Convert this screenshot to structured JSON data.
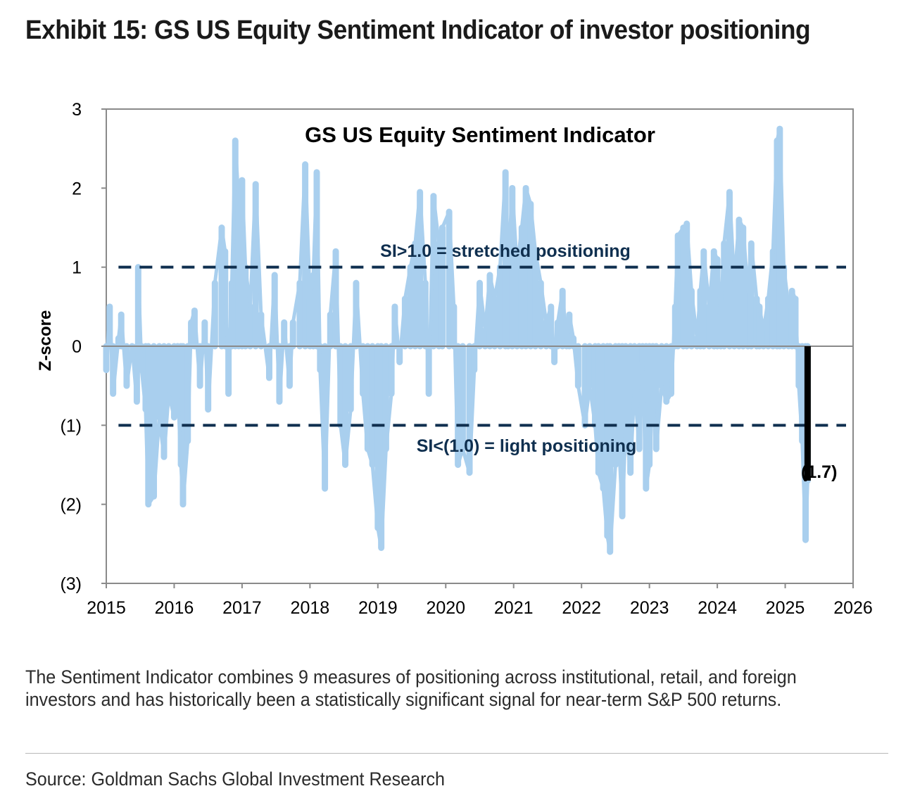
{
  "exhibit_title": "Exhibit 15: GS US Equity Sentiment Indicator of investor positioning",
  "note": "The Sentiment Indicator combines 9 measures of positioning across institutional, retail, and foreign investors and has historically been a statistically significant signal for near-term S&P 500 returns.",
  "source": "Source: Goldman Sachs Global Investment Research",
  "colors": {
    "series": "#a9cfee",
    "threshold_line": "#0f2f4f",
    "latest_bar": "#000000",
    "axis": "#8a8a8a",
    "annotation_text": "#0f2f4f"
  },
  "chart_data": {
    "type": "bar",
    "title": "GS US Equity Sentiment Indicator",
    "xlabel": "",
    "ylabel": "Z-score",
    "xlim": [
      2015,
      2026
    ],
    "ylim": [
      -3,
      3
    ],
    "x_ticks": [
      2015,
      2016,
      2017,
      2018,
      2019,
      2020,
      2021,
      2022,
      2023,
      2024,
      2025,
      2026
    ],
    "x_tick_labels": [
      "2015",
      "2016",
      "2017",
      "2018",
      "2019",
      "2020",
      "2021",
      "2022",
      "2023",
      "2024",
      "2025",
      "2026"
    ],
    "y_ticks": [
      3,
      2,
      1,
      0,
      -1,
      -2,
      -3
    ],
    "y_tick_labels": [
      "3",
      "2",
      "1",
      "0",
      "(1)",
      "(2)",
      "(3)"
    ],
    "grid": false,
    "series": [
      {
        "values": [
          [
            2015.0,
            -0.3
          ],
          [
            2015.05,
            0.5
          ],
          [
            2015.1,
            -0.6
          ],
          [
            2015.18,
            0.1
          ],
          [
            2015.22,
            0.4
          ],
          [
            2015.3,
            -0.5
          ],
          [
            2015.38,
            0.0
          ],
          [
            2015.45,
            -0.7
          ],
          [
            2015.47,
            1.0
          ],
          [
            2015.52,
            -0.3
          ],
          [
            2015.58,
            -0.8
          ],
          [
            2015.62,
            -2.0
          ],
          [
            2015.7,
            -1.9
          ],
          [
            2015.78,
            -0.9
          ],
          [
            2015.85,
            -1.4
          ],
          [
            2015.92,
            -0.6
          ],
          [
            2016.0,
            -0.9
          ],
          [
            2016.05,
            -0.5
          ],
          [
            2016.1,
            -1.5
          ],
          [
            2016.13,
            -2.0
          ],
          [
            2016.2,
            -1.2
          ],
          [
            2016.25,
            0.3
          ],
          [
            2016.3,
            0.45
          ],
          [
            2016.38,
            -0.5
          ],
          [
            2016.45,
            0.3
          ],
          [
            2016.5,
            -0.8
          ],
          [
            2016.6,
            0.8
          ],
          [
            2016.7,
            1.5
          ],
          [
            2016.75,
            1.2
          ],
          [
            2016.8,
            -0.6
          ],
          [
            2016.85,
            0.8
          ],
          [
            2016.9,
            2.6
          ],
          [
            2016.95,
            1.8
          ],
          [
            2017.0,
            2.1
          ],
          [
            2017.05,
            1.0
          ],
          [
            2017.12,
            0.5
          ],
          [
            2017.2,
            2.05
          ],
          [
            2017.28,
            0.4
          ],
          [
            2017.4,
            -0.4
          ],
          [
            2017.48,
            0.9
          ],
          [
            2017.55,
            -0.7
          ],
          [
            2017.62,
            0.3
          ],
          [
            2017.7,
            -0.5
          ],
          [
            2017.75,
            0.3
          ],
          [
            2017.85,
            0.8
          ],
          [
            2017.93,
            2.3
          ],
          [
            2018.0,
            0.6
          ],
          [
            2018.05,
            0.9
          ],
          [
            2018.1,
            2.2
          ],
          [
            2018.15,
            -0.3
          ],
          [
            2018.22,
            -1.8
          ],
          [
            2018.3,
            0.4
          ],
          [
            2018.38,
            1.2
          ],
          [
            2018.45,
            -1.0
          ],
          [
            2018.52,
            -1.5
          ],
          [
            2018.6,
            -0.8
          ],
          [
            2018.68,
            0.8
          ],
          [
            2018.78,
            -0.6
          ],
          [
            2018.85,
            -1.3
          ],
          [
            2018.92,
            -1.5
          ],
          [
            2019.0,
            -2.3
          ],
          [
            2019.05,
            -2.55
          ],
          [
            2019.12,
            -1.3
          ],
          [
            2019.2,
            -0.6
          ],
          [
            2019.25,
            0.5
          ],
          [
            2019.32,
            -0.2
          ],
          [
            2019.4,
            0.6
          ],
          [
            2019.48,
            1.0
          ],
          [
            2019.55,
            1.3
          ],
          [
            2019.62,
            1.95
          ],
          [
            2019.7,
            0.8
          ],
          [
            2019.75,
            -0.6
          ],
          [
            2019.82,
            1.9
          ],
          [
            2019.9,
            1.3
          ],
          [
            2019.95,
            1.5
          ],
          [
            2020.05,
            1.7
          ],
          [
            2020.12,
            0.5
          ],
          [
            2020.18,
            -1.5
          ],
          [
            2020.25,
            -1.3
          ],
          [
            2020.35,
            -1.6
          ],
          [
            2020.42,
            -0.3
          ],
          [
            2020.5,
            0.8
          ],
          [
            2020.58,
            0.2
          ],
          [
            2020.65,
            0.9
          ],
          [
            2020.72,
            0.6
          ],
          [
            2020.8,
            1.0
          ],
          [
            2020.88,
            2.2
          ],
          [
            2020.92,
            1.0
          ],
          [
            2020.98,
            2.0
          ],
          [
            2021.05,
            1.0
          ],
          [
            2021.12,
            1.5
          ],
          [
            2021.18,
            2.0
          ],
          [
            2021.25,
            1.8
          ],
          [
            2021.32,
            1.2
          ],
          [
            2021.4,
            0.8
          ],
          [
            2021.48,
            0.3
          ],
          [
            2021.55,
            0.5
          ],
          [
            2021.6,
            -0.2
          ],
          [
            2021.65,
            0.3
          ],
          [
            2021.72,
            0.7
          ],
          [
            2021.78,
            0.0
          ],
          [
            2021.82,
            0.4
          ],
          [
            2021.88,
            0.1
          ],
          [
            2021.95,
            -0.5
          ],
          [
            2022.05,
            -1.0
          ],
          [
            2022.12,
            -0.5
          ],
          [
            2022.2,
            -1.0
          ],
          [
            2022.25,
            -1.6
          ],
          [
            2022.32,
            -1.8
          ],
          [
            2022.38,
            -2.4
          ],
          [
            2022.42,
            -2.6
          ],
          [
            2022.5,
            -1.5
          ],
          [
            2022.55,
            -1.2
          ],
          [
            2022.6,
            -2.15
          ],
          [
            2022.65,
            -1.0
          ],
          [
            2022.72,
            -1.6
          ],
          [
            2022.78,
            -0.5
          ],
          [
            2022.85,
            -1.3
          ],
          [
            2022.9,
            -0.2
          ],
          [
            2022.95,
            -1.8
          ],
          [
            2023.0,
            -1.5
          ],
          [
            2023.05,
            -0.6
          ],
          [
            2023.1,
            -1.3
          ],
          [
            2023.18,
            -0.5
          ],
          [
            2023.25,
            -0.7
          ],
          [
            2023.32,
            -0.6
          ],
          [
            2023.38,
            0.5
          ],
          [
            2023.42,
            1.4
          ],
          [
            2023.5,
            1.5
          ],
          [
            2023.55,
            1.55
          ],
          [
            2023.62,
            0.7
          ],
          [
            2023.7,
            0.1
          ],
          [
            2023.75,
            0.7
          ],
          [
            2023.8,
            1.2
          ],
          [
            2023.88,
            0.5
          ],
          [
            2023.95,
            1.2
          ],
          [
            2024.0,
            1.1
          ],
          [
            2024.05,
            0.4
          ],
          [
            2024.1,
            1.3
          ],
          [
            2024.18,
            1.95
          ],
          [
            2024.25,
            0.8
          ],
          [
            2024.32,
            1.6
          ],
          [
            2024.38,
            1.5
          ],
          [
            2024.45,
            0.7
          ],
          [
            2024.5,
            1.3
          ],
          [
            2024.58,
            0.6
          ],
          [
            2024.62,
            0.5
          ],
          [
            2024.68,
            0.2
          ],
          [
            2024.75,
            0.6
          ],
          [
            2024.82,
            1.2
          ],
          [
            2024.88,
            2.6
          ],
          [
            2024.92,
            2.75
          ],
          [
            2024.98,
            1.0
          ],
          [
            2025.05,
            0.5
          ],
          [
            2025.1,
            0.7
          ],
          [
            2025.15,
            0.6
          ],
          [
            2025.2,
            -0.5
          ],
          [
            2025.25,
            -1.2
          ],
          [
            2025.3,
            -2.45
          ],
          [
            2025.33,
            -1.7
          ]
        ]
      }
    ],
    "latest": {
      "x": 2025.33,
      "value": -1.7,
      "label": "(1.7)"
    },
    "thresholds": [
      {
        "value": 1.0,
        "label": "SI>1.0 = stretched positioning"
      },
      {
        "value": -1.0,
        "label": "SI<(1.0) = light positioning"
      }
    ]
  }
}
